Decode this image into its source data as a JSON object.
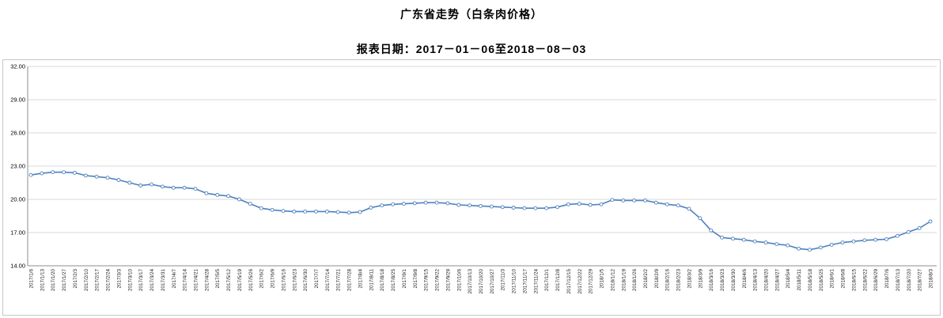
{
  "header": {
    "title": "广东省走势（白条肉价格）",
    "subtitle": "报表日期：2017－01－06至2018－08－03"
  },
  "chart_data": {
    "type": "line",
    "title": "广东省走势（白条肉价格）",
    "subtitle": "报表日期：2017－01－06至2018－08－03",
    "series_name": "白条肉价格",
    "ylim": [
      14,
      32
    ],
    "y_ticks": [
      14,
      17,
      20,
      23,
      26,
      29,
      32
    ],
    "y_tick_labels": [
      "14.00",
      "17.00",
      "20.00",
      "23.00",
      "26.00",
      "29.00",
      "32.00"
    ],
    "grid": true,
    "legend": "none",
    "line_color": "#4f81bd",
    "marker": "circle",
    "categories": [
      "2017/1/6",
      "2017/1/13",
      "2017/1/20",
      "2017/1/27",
      "2017/2/3",
      "2017/2/10",
      "2017/2/17",
      "2017/2/24",
      "2017/3/3",
      "2017/3/10",
      "2017/3/17",
      "2017/3/24",
      "2017/3/31",
      "2017/4/7",
      "2017/4/14",
      "2017/4/21",
      "2017/4/28",
      "2017/5/5",
      "2017/5/12",
      "2017/5/19",
      "2017/5/26",
      "2017/6/2",
      "2017/6/9",
      "2017/6/16",
      "2017/6/23",
      "2017/6/30",
      "2017/7/7",
      "2017/7/14",
      "2017/7/21",
      "2017/7/28",
      "2017/8/4",
      "2017/8/11",
      "2017/8/18",
      "2017/8/25",
      "2017/9/1",
      "2017/9/8",
      "2017/9/15",
      "2017/9/22",
      "2017/9/29",
      "2017/10/6",
      "2017/10/13",
      "2017/10/20",
      "2017/10/27",
      "2017/11/3",
      "2017/11/10",
      "2017/11/17",
      "2017/11/24",
      "2017/12/1",
      "2017/12/8",
      "2017/12/15",
      "2017/12/22",
      "2017/12/29",
      "2018/1/5",
      "2018/1/12",
      "2018/1/19",
      "2018/1/26",
      "2018/2/2",
      "2018/2/9",
      "2018/2/16",
      "2018/2/23",
      "2018/3/2",
      "2018/3/9",
      "2018/3/16",
      "2018/3/23",
      "2018/3/30",
      "2018/4/6",
      "2018/4/13",
      "2018/4/20",
      "2018/4/27",
      "2018/5/4",
      "2018/5/11",
      "2018/5/18",
      "2018/5/25",
      "2018/6/1",
      "2018/6/8",
      "2018/6/15",
      "2018/6/22",
      "2018/6/29",
      "2018/7/6",
      "2018/7/13",
      "2018/7/20",
      "2018/7/27",
      "2018/8/3"
    ],
    "values": [
      22.2,
      22.35,
      22.45,
      22.45,
      22.4,
      22.15,
      22.05,
      21.95,
      21.75,
      21.5,
      21.25,
      21.35,
      21.15,
      21.05,
      21.05,
      20.95,
      20.55,
      20.4,
      20.3,
      20.0,
      19.6,
      19.2,
      19.05,
      18.95,
      18.9,
      18.9,
      18.9,
      18.9,
      18.85,
      18.8,
      18.85,
      19.25,
      19.45,
      19.55,
      19.6,
      19.65,
      19.7,
      19.7,
      19.65,
      19.5,
      19.45,
      19.4,
      19.35,
      19.3,
      19.25,
      19.2,
      19.2,
      19.2,
      19.3,
      19.55,
      19.6,
      19.5,
      19.55,
      19.95,
      19.9,
      19.9,
      19.9,
      19.7,
      19.55,
      19.45,
      19.15,
      18.3,
      17.2,
      16.55,
      16.45,
      16.35,
      16.2,
      16.1,
      15.95,
      15.85,
      15.55,
      15.45,
      15.65,
      15.9,
      16.1,
      16.2,
      16.3,
      16.35,
      16.4,
      16.7,
      17.05,
      17.4,
      18.0
    ]
  }
}
